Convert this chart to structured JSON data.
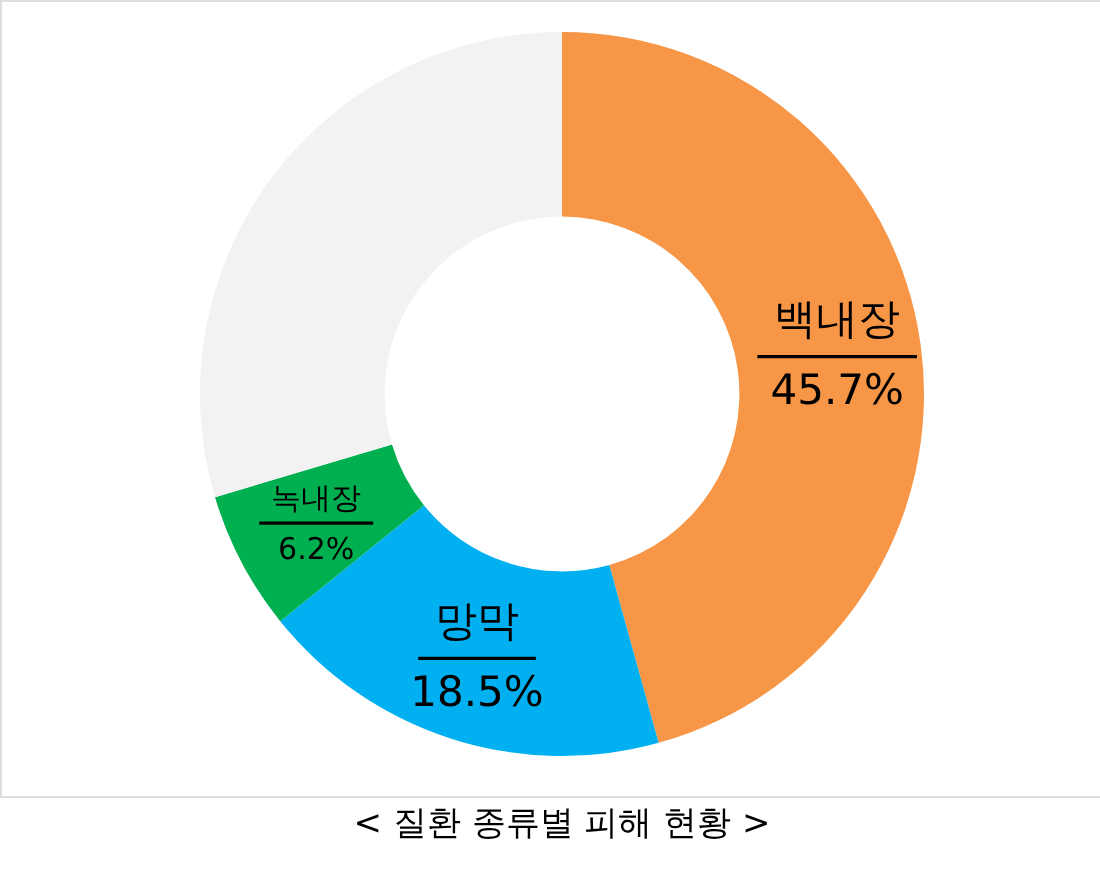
{
  "chart_data": {
    "type": "donut",
    "title": "< 질환 종류별 피해 현황 >",
    "categories": [
      "백내장",
      "망막",
      "녹내장",
      null
    ],
    "values": [
      45.7,
      18.5,
      6.2,
      29.6
    ],
    "colors": [
      "#f79646",
      "#00b0f0",
      "#00b050",
      "#f2f2f2"
    ],
    "value_labels": [
      "45.7%",
      "18.5%",
      "6.2%",
      null
    ]
  }
}
